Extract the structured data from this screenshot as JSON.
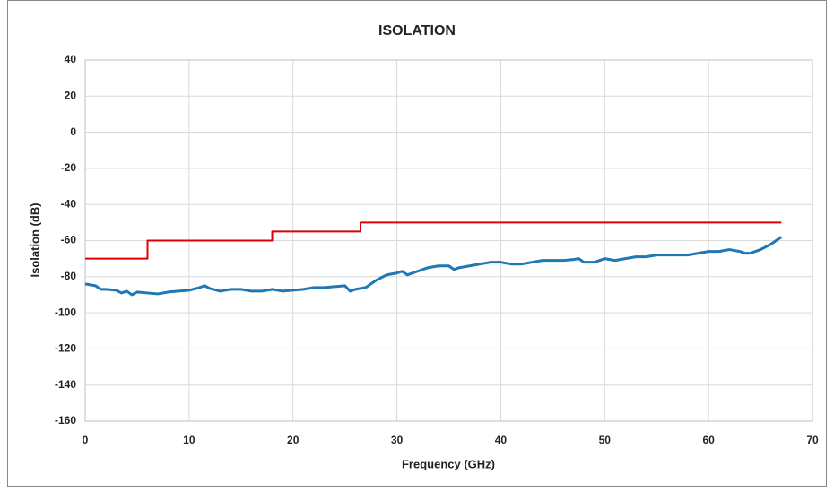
{
  "chart_data": {
    "type": "line",
    "title": "ISOLATION",
    "x_label": "Frequency (GHz)",
    "y_label": "Isolation (dB)",
    "xlim": [
      0,
      70
    ],
    "xticks": [
      0,
      10,
      20,
      30,
      40,
      50,
      60,
      70
    ],
    "ylim": [
      -160,
      40
    ],
    "yticks": [
      -160,
      -140,
      -120,
      -100,
      -80,
      -60,
      -40,
      -20,
      0,
      20,
      40
    ],
    "grid": true,
    "series": [
      {
        "color": "#1f77b4",
        "width": 3,
        "x": [
          0,
          0.5,
          1,
          1.5,
          2,
          3,
          3.5,
          4,
          4.5,
          5,
          6,
          7,
          8,
          9,
          10,
          11,
          11.5,
          12,
          13,
          14,
          15,
          16,
          17,
          18,
          19,
          20,
          21,
          22,
          23,
          24,
          25,
          25.5,
          26,
          27,
          28,
          29,
          30,
          30.5,
          31,
          32,
          33,
          34,
          35,
          35.5,
          36,
          37,
          38,
          39,
          40,
          41,
          42,
          43,
          44,
          45,
          46,
          47,
          47.5,
          48,
          49,
          50,
          51,
          52,
          53,
          54,
          55,
          56,
          57,
          58,
          59,
          60,
          61,
          62,
          63,
          63.5,
          64,
          65,
          66,
          67
        ],
        "values": [
          -84,
          -84.5,
          -85,
          -87,
          -87,
          -87.5,
          -89,
          -88,
          -90,
          -88.5,
          -89,
          -89.5,
          -88.5,
          -88,
          -87.5,
          -86,
          -85,
          -86.5,
          -88,
          -87,
          -87,
          -88,
          -88,
          -87,
          -88,
          -87.5,
          -87,
          -86,
          -86,
          -85.5,
          -85,
          -88,
          -87,
          -86,
          -82,
          -79,
          -78,
          -77,
          -79,
          -77,
          -75,
          -74,
          -74,
          -76,
          -75,
          -74,
          -73,
          -72,
          -72,
          -73,
          -73,
          -72,
          -71,
          -71,
          -71,
          -70.5,
          -70,
          -72,
          -72,
          -70,
          -71,
          -70,
          -69,
          -69,
          -68,
          -68,
          -68,
          -68,
          -67,
          -66,
          -66,
          -65,
          -66,
          -67,
          -67,
          -65,
          -62,
          -58
        ]
      },
      {
        "color": "#e00000",
        "width": 2,
        "x": [
          0,
          6,
          6,
          18,
          18,
          26.5,
          26.5,
          67
        ],
        "values": [
          -70,
          -70,
          -60,
          -60,
          -55,
          -55,
          -50,
          -50
        ]
      }
    ]
  }
}
